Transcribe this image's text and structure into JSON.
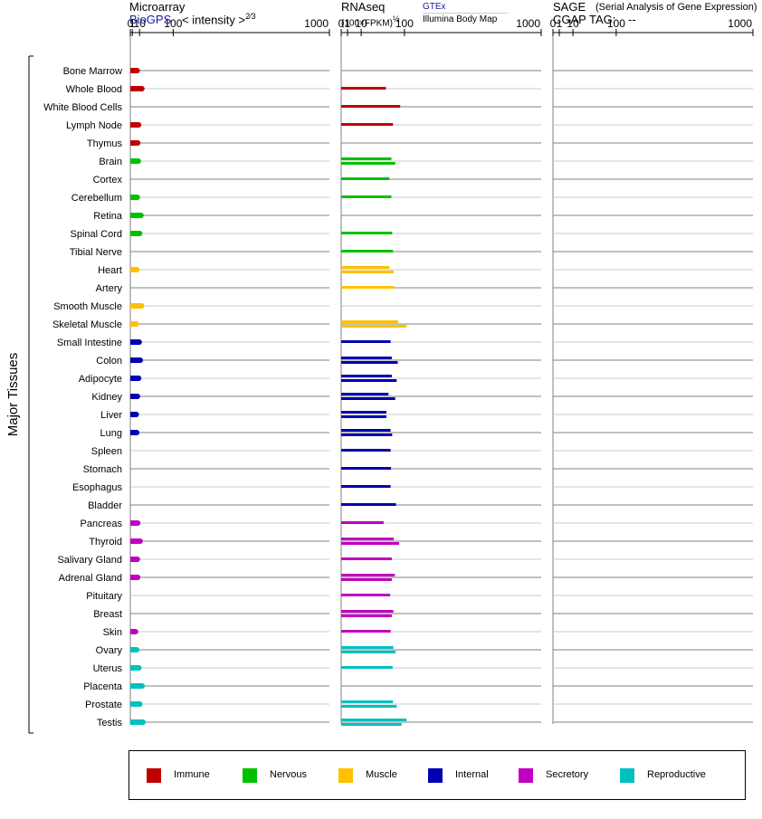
{
  "headers": {
    "microarray_title": "Microarray",
    "microarray_source": "BioGPS",
    "microarray_scale": "< intensity >",
    "microarray_exp": "2⁄3",
    "rnaseq_title": "RNAseq",
    "rnaseq_unit": "(100×FPKM)",
    "rnaseq_exp": "½",
    "rnaseq_source1": "GTEx",
    "rnaseq_source2": "Illumina Body Map",
    "sage_title": "SAGE",
    "sage_desc": "(Serial Analysis of Gene Expression)",
    "sage_tag_label": "CGAP TAG:",
    "sage_tag_value": "--"
  },
  "legend": [
    {
      "label": "Immune",
      "color": "#c00000"
    },
    {
      "label": "Nervous",
      "color": "#00c000"
    },
    {
      "label": "Muscle",
      "color": "#ffc000"
    },
    {
      "label": "Internal",
      "color": "#0000b0"
    },
    {
      "label": "Secretory",
      "color": "#c000c0"
    },
    {
      "label": "Reproductive",
      "color": "#00c0c0"
    }
  ],
  "chart_data": {
    "type": "bar",
    "orientation": "horizontal",
    "group_label": "Major Tissues",
    "ticks": [
      "0",
      "1",
      "10",
      "100",
      "1000"
    ],
    "xlim": [
      0,
      1000
    ],
    "categories": [
      "Bone Marrow",
      "Whole Blood",
      "White Blood Cells",
      "Lymph Node",
      "Thymus",
      "Brain",
      "Cortex",
      "Cerebellum",
      "Retina",
      "Spinal Cord",
      "Tibial Nerve",
      "Heart",
      "Artery",
      "Smooth Muscle",
      "Skeletal Muscle",
      "Small Intestine",
      "Colon",
      "Adipocyte",
      "Kidney",
      "Liver",
      "Lung",
      "Spleen",
      "Stomach",
      "Esophagus",
      "Bladder",
      "Pancreas",
      "Thyroid",
      "Salivary Gland",
      "Adrenal Gland",
      "Pituitary",
      "Breast",
      "Skin",
      "Ovary",
      "Uterus",
      "Placenta",
      "Prostate",
      "Testis"
    ],
    "system": [
      "Immune",
      "Immune",
      "Immune",
      "Immune",
      "Immune",
      "Nervous",
      "Nervous",
      "Nervous",
      "Nervous",
      "Nervous",
      "Nervous",
      "Muscle",
      "Muscle",
      "Muscle",
      "Muscle",
      "Internal",
      "Internal",
      "Internal",
      "Internal",
      "Internal",
      "Internal",
      "Internal",
      "Internal",
      "Internal",
      "Internal",
      "Secretory",
      "Secretory",
      "Secretory",
      "Secretory",
      "Secretory",
      "Secretory",
      "Secretory",
      "Reproductive",
      "Reproductive",
      "Reproductive",
      "Reproductive",
      "Reproductive"
    ],
    "series": [
      {
        "name": "Microarray",
        "values": [
          6.5,
          14,
          null,
          8.5,
          7.2,
          8.1,
          null,
          6.6,
          12.5,
          10.2,
          null,
          5.9,
          null,
          13.5,
          5.3,
          9.5,
          11.2,
          8.6,
          6.8,
          5.2,
          5.8,
          null,
          null,
          null,
          null,
          7.2,
          11,
          6.7,
          7.2,
          null,
          null,
          4.3,
          5.8,
          9,
          14.5,
          10.5,
          16
        ]
      },
      {
        "name": "GTEx",
        "values": [
          null,
          50,
          87,
          null,
          null,
          63,
          58,
          63,
          null,
          65,
          67,
          58,
          70,
          null,
          81,
          61,
          64,
          64,
          56,
          51,
          61,
          61,
          62,
          61,
          75,
          45,
          69,
          64,
          72,
          60,
          68,
          61,
          68,
          66,
          null,
          67,
          107
        ]
      },
      {
        "name": "Illumina Body Map",
        "values": [
          null,
          null,
          null,
          67,
          null,
          73,
          null,
          null,
          null,
          null,
          null,
          69,
          null,
          null,
          107,
          null,
          80,
          77,
          73,
          51,
          65,
          null,
          null,
          null,
          null,
          null,
          84,
          null,
          64,
          null,
          64,
          null,
          74,
          null,
          null,
          77,
          91
        ]
      }
    ]
  }
}
